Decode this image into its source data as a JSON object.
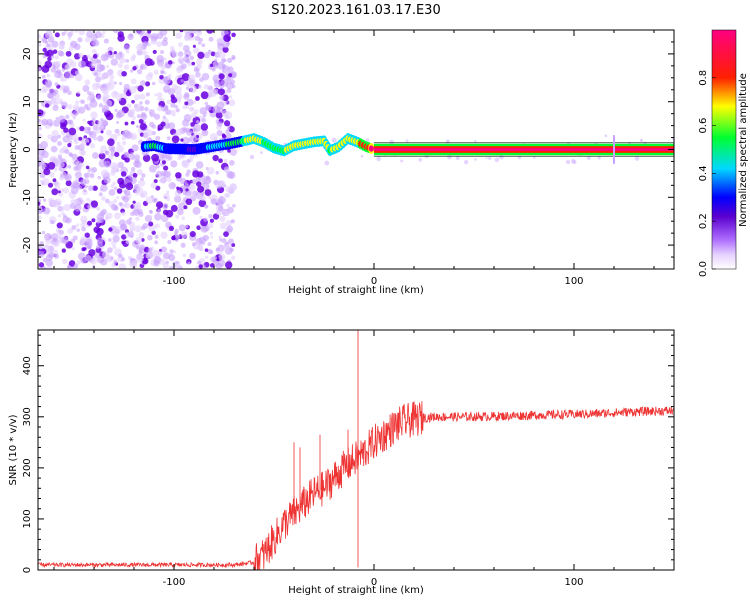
{
  "figure": {
    "title": "S120.2023.161.03.17.E30"
  },
  "chart_data": [
    {
      "type": "heatmap",
      "xlabel": "Height of straight line (km)",
      "ylabel": "Frequency (Hz)",
      "xlim": [
        -168,
        150
      ],
      "ylim": [
        -25,
        25
      ],
      "x_ticks": [
        -100,
        0,
        100
      ],
      "y_ticks": [
        -20,
        -10,
        0,
        10,
        20
      ],
      "colorbar": {
        "label": "Normalized spectral amplitude",
        "range": [
          0,
          1
        ],
        "ticks": [
          "0.0",
          "0.2",
          "0.4",
          "0.6",
          "0.8"
        ],
        "tick_values": [
          0.0,
          0.2,
          0.4,
          0.6,
          0.8
        ],
        "colormap": [
          "#ffffff",
          "#b070ff",
          "#6a00e0",
          "#0000ff",
          "#00e0ff",
          "#00ff30",
          "#ffff00",
          "#ff2000",
          "#ff0080"
        ]
      },
      "noise_region": {
        "x": [
          -168,
          -70
        ],
        "y": [
          -25,
          25
        ],
        "amplitude": 0.12
      },
      "ridge": [
        [
          -115,
          0.6,
          0.25
        ],
        [
          -110,
          0.8,
          0.5
        ],
        [
          -104,
          0.2,
          0.3
        ],
        [
          -90,
          0.0,
          0.2
        ],
        [
          -72,
          1.2,
          0.45
        ],
        [
          -65,
          1.8,
          0.55
        ],
        [
          -60,
          2.3,
          0.6
        ],
        [
          -55,
          1.5,
          0.55
        ],
        [
          -50,
          0.3,
          0.55
        ],
        [
          -45,
          -0.3,
          0.55
        ],
        [
          -40,
          0.8,
          0.6
        ],
        [
          -35,
          1.2,
          0.6
        ],
        [
          -30,
          1.6,
          0.6
        ],
        [
          -25,
          1.8,
          0.6
        ],
        [
          -22,
          -0.2,
          0.55
        ],
        [
          -18,
          0.5,
          0.6
        ],
        [
          -13,
          2.3,
          0.65
        ],
        [
          -8,
          1.5,
          0.65
        ],
        [
          -4,
          0.6,
          0.75
        ],
        [
          0,
          0.0,
          0.88
        ],
        [
          150,
          0.0,
          0.88
        ]
      ],
      "spike_x": 120
    },
    {
      "type": "line",
      "xlabel": "Height of straight line (km)",
      "ylabel": "SNR (10 * v/v)",
      "xlim": [
        -168,
        150
      ],
      "ylim": [
        0,
        470
      ],
      "x_ticks": [
        -100,
        0,
        100
      ],
      "y_ticks": [
        0,
        100,
        200,
        300,
        400
      ],
      "line_color": "#ee3333",
      "series": [
        {
          "x": [
            -168,
            -150,
            -130,
            -110,
            -90,
            -70,
            -60,
            -55,
            -50,
            -45,
            -40,
            -35,
            -30,
            -25,
            -20,
            -15,
            -10,
            -5,
            0,
            5,
            10,
            15,
            20,
            25,
            30,
            40,
            50,
            60,
            70,
            80,
            90,
            100,
            110,
            120,
            130,
            140,
            150
          ],
          "y": [
            10,
            10,
            10,
            10,
            10,
            10,
            15,
            30,
            60,
            90,
            110,
            130,
            150,
            160,
            180,
            200,
            215,
            230,
            250,
            265,
            280,
            290,
            295,
            298,
            300,
            300,
            300,
            301,
            302,
            303,
            304,
            305,
            306,
            308,
            310,
            311,
            312
          ],
          "spikes": [
            {
              "x": -40,
              "y": 250
            },
            {
              "x": -37,
              "y": 240
            },
            {
              "x": -27,
              "y": 265
            },
            {
              "x": -13,
              "y": 275
            },
            {
              "x": -8,
              "y": 470
            },
            {
              "x": -8,
              "y": 5
            }
          ]
        }
      ]
    }
  ]
}
